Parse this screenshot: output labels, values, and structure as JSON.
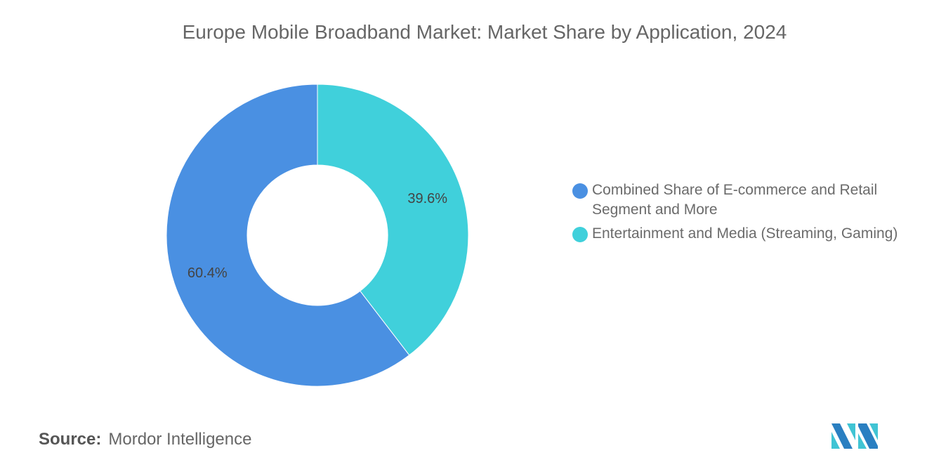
{
  "chart_data": {
    "type": "pie",
    "title": "Europe Mobile Broadband Market: Market Share by Application, 2024",
    "donut": true,
    "categories": [
      "Combined Share of E-commerce and Retail Segment and More",
      "Entertainment and Media (Streaming, Gaming)"
    ],
    "values": [
      60.4,
      39.6
    ],
    "labels": [
      "60.4%",
      "39.6%"
    ],
    "colors": [
      "#4a90e2",
      "#40d0db"
    ],
    "legend": "right"
  },
  "source": {
    "label": "Source:",
    "value": "Mordor Intelligence"
  },
  "logo": {
    "text": "Mordor Intelligence"
  }
}
